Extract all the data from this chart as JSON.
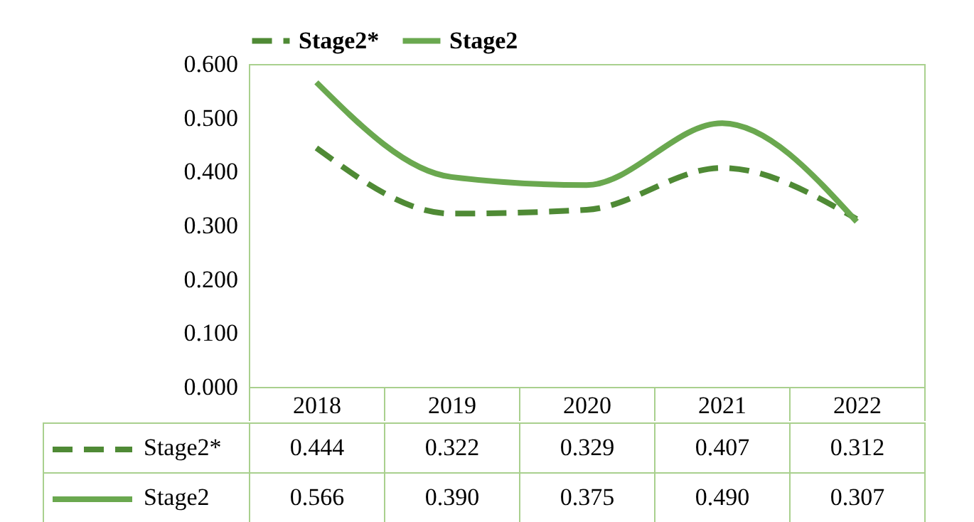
{
  "chart_data": {
    "type": "line",
    "categories": [
      "2018",
      "2019",
      "2020",
      "2021",
      "2022"
    ],
    "series": [
      {
        "name": "Stage2*",
        "color": "#4f8a35",
        "line_style": "dashed",
        "values": [
          0.444,
          0.322,
          0.329,
          0.407,
          0.312
        ],
        "value_labels": [
          "0.444",
          "0.322",
          "0.329",
          "0.407",
          "0.312"
        ]
      },
      {
        "name": "Stage2",
        "color": "#6aa84f",
        "line_style": "solid",
        "values": [
          0.566,
          0.39,
          0.375,
          0.49,
          0.307
        ],
        "value_labels": [
          "0.566",
          "0.390",
          "0.375",
          "0.490",
          "0.307"
        ]
      }
    ],
    "ylim": [
      0,
      0.6
    ],
    "yticks": [
      {
        "value": 0,
        "label": "0.000"
      },
      {
        "value": 0.1,
        "label": "0.100"
      },
      {
        "value": 0.2,
        "label": "0.200"
      },
      {
        "value": 0.3,
        "label": "0.300"
      },
      {
        "value": 0.4,
        "label": "0.400"
      },
      {
        "value": 0.5,
        "label": "0.500"
      },
      {
        "value": 0.6,
        "label": "0.600"
      }
    ],
    "grid": false,
    "legend": "top",
    "marker": "none"
  }
}
